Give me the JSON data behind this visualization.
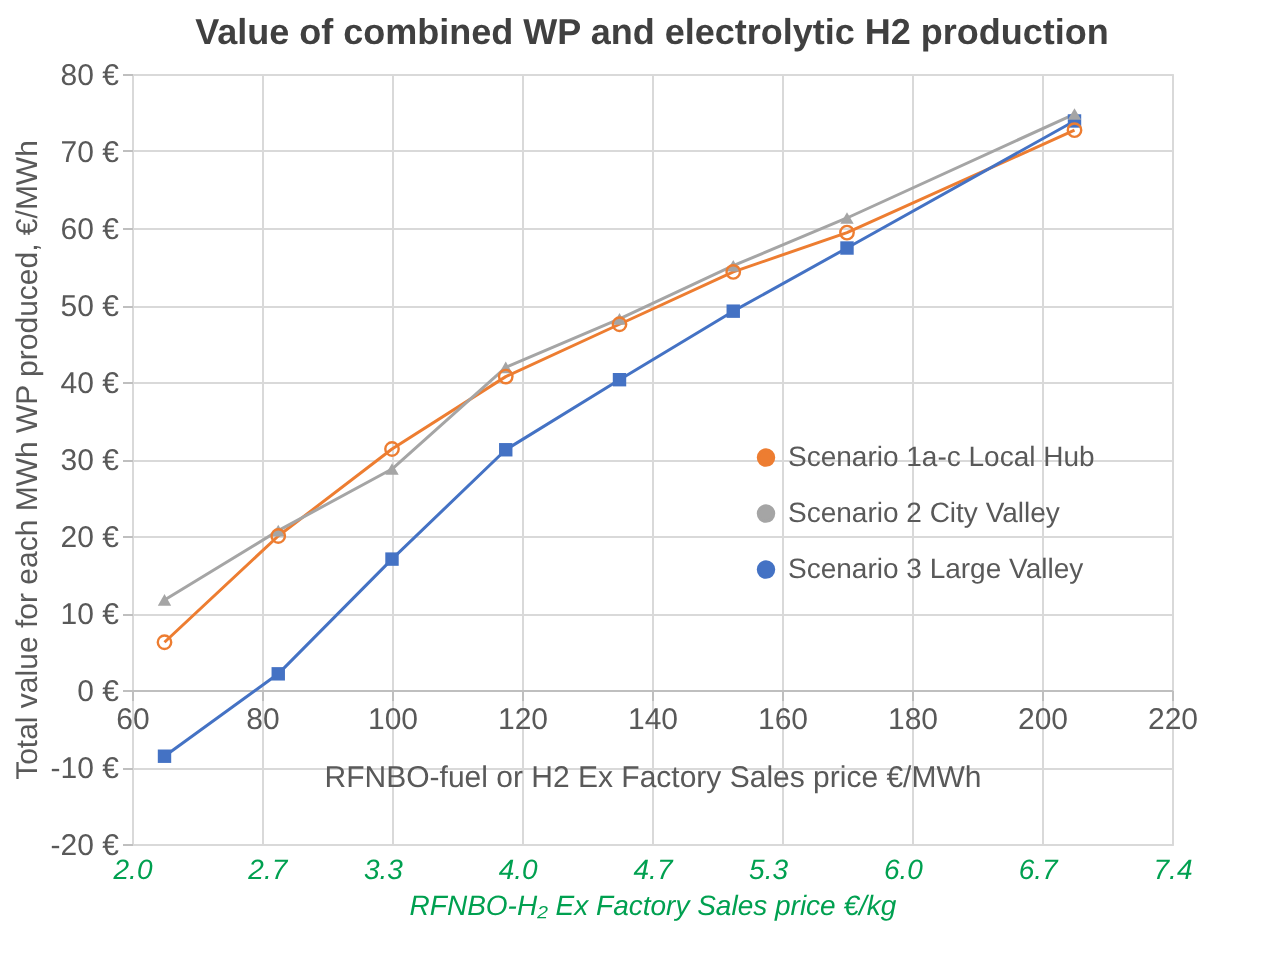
{
  "chart_data": {
    "type": "line",
    "title": "Value of combined WP and electrolytic H2 production",
    "xlabel": "RFNBO-fuel or H2 Ex Factory Sales price €/MWh",
    "ylabel": "Total value for each MWh  WP produced, €/MWh",
    "x2label": "RFNBO-H₂ Ex Factory Sales price €/kg",
    "x": [
      65,
      82.5,
      100,
      117.5,
      135,
      152.5,
      170,
      205
    ],
    "series": [
      {
        "name": "Scenario 1a-c Local Hub",
        "color": "#ed7d31",
        "marker": "circle",
        "values": [
          6.2,
          20,
          31.3,
          40.7,
          47.5,
          54.3,
          59.4,
          72.7
        ]
      },
      {
        "name": "Scenario 2 City Valley",
        "color": "#a5a5a5",
        "marker": "triangle",
        "values": [
          11.7,
          20.7,
          28.7,
          41.9,
          48.2,
          55.1,
          61.3,
          74.8
        ]
      },
      {
        "name": "Scenario 3 Large Valley",
        "color": "#4472c4",
        "marker": "square",
        "values": [
          -8.6,
          2.1,
          17,
          31.2,
          40.3,
          49.2,
          57.4,
          73.9
        ]
      }
    ],
    "xlim": [
      60,
      220
    ],
    "xticks": [
      60,
      80,
      100,
      120,
      140,
      160,
      180,
      200,
      220
    ],
    "ylim": [
      -20,
      80
    ],
    "yticks": [
      {
        "value": -20,
        "label": "-20 €"
      },
      {
        "value": -10,
        "label": "-10 €"
      },
      {
        "value": 0,
        "label": "0 €"
      },
      {
        "value": 10,
        "label": "10 €"
      },
      {
        "value": 20,
        "label": "20 €"
      },
      {
        "value": 30,
        "label": "30 €"
      },
      {
        "value": 40,
        "label": "40 €"
      },
      {
        "value": 50,
        "label": "50 €"
      },
      {
        "value": 60,
        "label": "60 €"
      },
      {
        "value": 70,
        "label": "70 €"
      },
      {
        "value": 80,
        "label": "80 €"
      }
    ],
    "x2lim": [
      2.0,
      7.4
    ],
    "x2ticks": [
      {
        "value": 2.0,
        "label": "2.0"
      },
      {
        "value": 2.7,
        "label": "2.7"
      },
      {
        "value": 3.3,
        "label": "3.3"
      },
      {
        "value": 4.0,
        "label": "4.0"
      },
      {
        "value": 4.7,
        "label": "4.7"
      },
      {
        "value": 5.3,
        "label": "5.3"
      },
      {
        "value": 6.0,
        "label": "6.0"
      },
      {
        "value": 6.7,
        "label": "6.7"
      },
      {
        "value": 7.4,
        "label": "7.4"
      }
    ],
    "grid": true,
    "legend": "right"
  }
}
